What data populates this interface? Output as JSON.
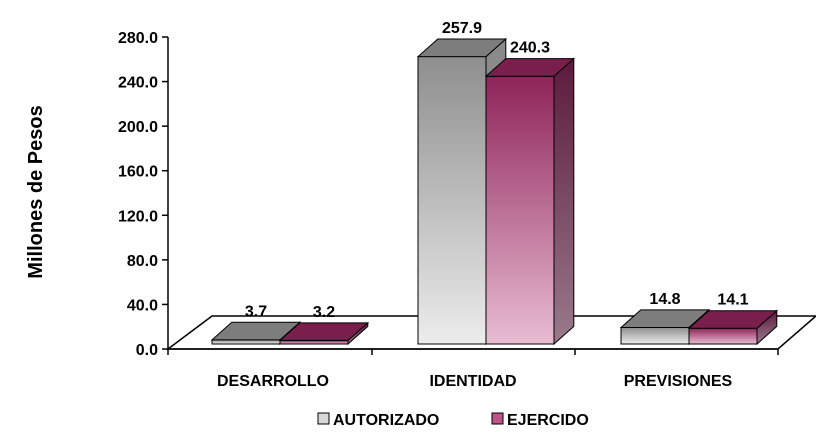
{
  "chart_data": {
    "type": "bar",
    "title": "",
    "xlabel": "",
    "ylabel": "Millones de Pesos",
    "ylim": [
      0,
      280
    ],
    "yticks": [
      "0.0",
      "40.0",
      "80.0",
      "120.0",
      "160.0",
      "200.0",
      "240.0",
      "280.0"
    ],
    "categories": [
      "DESARROLLO",
      "IDENTIDAD",
      "PREVISIONES"
    ],
    "series": [
      {
        "name": "AUTORIZADO",
        "values": [
          3.7,
          257.9,
          14.8
        ],
        "labels": [
          "3.7",
          "257.9",
          "14.8"
        ],
        "color": "#9c9c9c"
      },
      {
        "name": "EJERCIDO",
        "values": [
          3.2,
          240.3,
          14.1
        ],
        "labels": [
          "3.2",
          "240.3",
          "14.1"
        ],
        "color": "#a0306a"
      }
    ],
    "grid": false,
    "legend": "bottom",
    "style": "3d-clustered"
  }
}
